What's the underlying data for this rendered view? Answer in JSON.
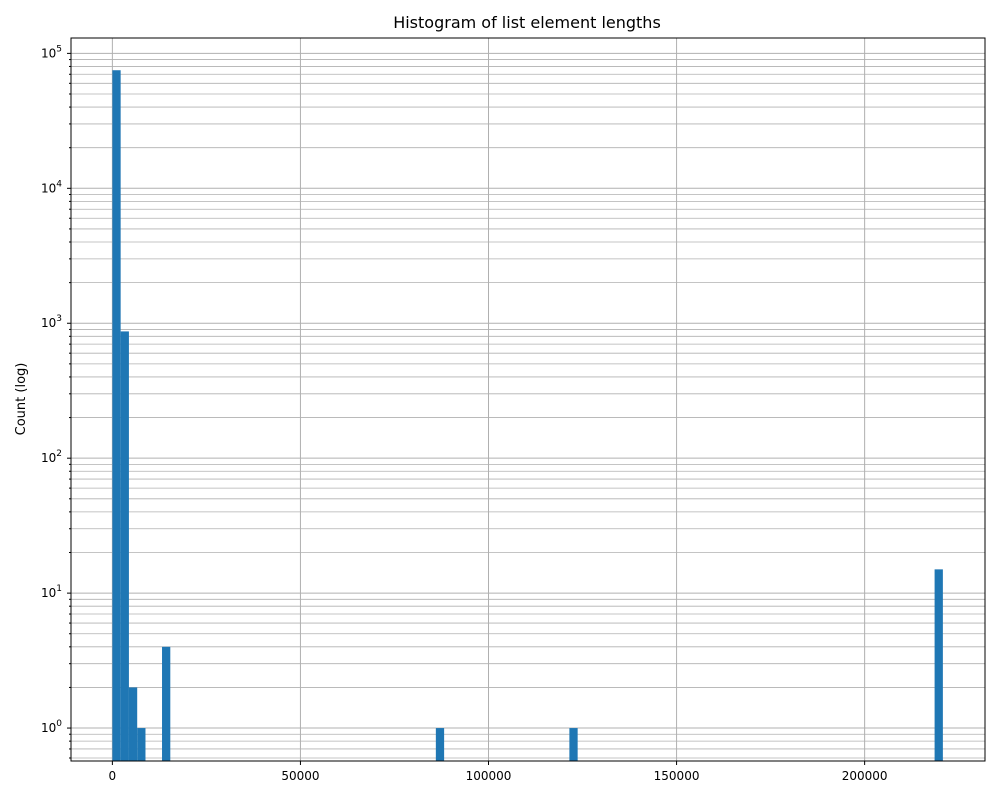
{
  "chart_data": {
    "type": "bar",
    "title": "Histogram of list element lengths",
    "xlabel": "",
    "ylabel": "Count (log)",
    "yscale": "log",
    "grid": true,
    "xlim": [
      -11000,
      232000
    ],
    "ylim": [
      0.57,
      130000
    ],
    "bin_width": 2200,
    "bar_color": "#1f77b4",
    "x_ticks": [
      0,
      50000,
      100000,
      150000,
      200000
    ],
    "x_tick_labels": [
      "0",
      "50000",
      "100000",
      "150000",
      "200000"
    ],
    "y_ticks": [
      1,
      10,
      100,
      1000,
      10000,
      100000
    ],
    "y_tick_labels": [
      {
        "base": "10",
        "exp": "0"
      },
      {
        "base": "10",
        "exp": "1"
      },
      {
        "base": "10",
        "exp": "2"
      },
      {
        "base": "10",
        "exp": "3"
      },
      {
        "base": "10",
        "exp": "4"
      },
      {
        "base": "10",
        "exp": "5"
      }
    ],
    "bars": [
      {
        "x": 0,
        "count": 75000
      },
      {
        "x": 2200,
        "count": 870
      },
      {
        "x": 4400,
        "count": 2
      },
      {
        "x": 6600,
        "count": 1
      },
      {
        "x": 13200,
        "count": 4
      },
      {
        "x": 86000,
        "count": 1
      },
      {
        "x": 121500,
        "count": 1
      },
      {
        "x": 218600,
        "count": 15
      }
    ]
  }
}
